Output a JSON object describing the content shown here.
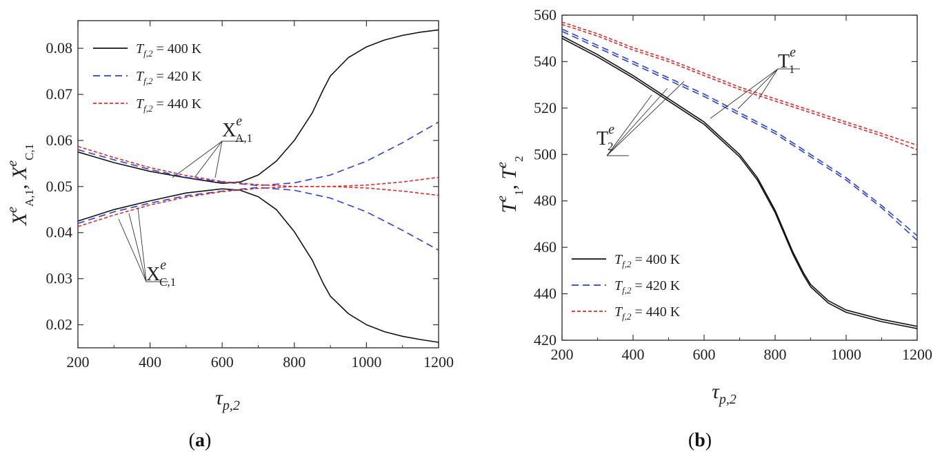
{
  "chart_data": [
    {
      "type": "line",
      "panel_label": "a",
      "xlabel": "τp,2",
      "ylabel": "XeA,1, XeC,1",
      "xlim": [
        200,
        1200
      ],
      "ylim": [
        0.015,
        0.086
      ],
      "xticks": [
        200,
        400,
        600,
        800,
        1000,
        1200
      ],
      "yticks": [
        0.02,
        0.03,
        0.04,
        0.05,
        0.06,
        0.07,
        0.08
      ],
      "ytick_labels": [
        "0.02",
        "0.03",
        "0.04",
        "0.05",
        "0.06",
        "0.07",
        "0.08"
      ],
      "legend_position": "top-left",
      "legend": [
        {
          "label": "Tf,2 = 400 K",
          "value": "400 K",
          "color": "#111111",
          "dash": "solid"
        },
        {
          "label": "Tf,2 = 420 K",
          "value": "420 K",
          "color": "#2a3fe0",
          "dash": "dashed"
        },
        {
          "label": "Tf,2 = 440 K",
          "value": "440 K",
          "color": "#e02a2a",
          "dash": "dotted"
        }
      ],
      "annotations": [
        {
          "label": "XeA,1",
          "main": "X",
          "sup": "e",
          "sub": "A,1"
        },
        {
          "label": "XeC,1",
          "main": "X",
          "sup": "e",
          "sub": "C,1"
        }
      ],
      "series": [
        {
          "name": "XA,1 Tf,2=400 K",
          "color": "#111111",
          "dash": "solid",
          "x": [
            200,
            300,
            400,
            500,
            600,
            650,
            700,
            750,
            800,
            850,
            880,
            900,
            950,
            1000,
            1050,
            1100,
            1150,
            1200
          ],
          "y": [
            0.0575,
            0.0552,
            0.0533,
            0.0519,
            0.0507,
            0.051,
            0.0525,
            0.0555,
            0.06,
            0.066,
            0.071,
            0.074,
            0.078,
            0.0803,
            0.0818,
            0.0828,
            0.0835,
            0.084
          ]
        },
        {
          "name": "XC,1 Tf,2=400 K",
          "color": "#111111",
          "dash": "solid",
          "x": [
            200,
            300,
            400,
            500,
            600,
            650,
            700,
            750,
            800,
            850,
            880,
            900,
            950,
            1000,
            1050,
            1100,
            1150,
            1200
          ],
          "y": [
            0.0425,
            0.045,
            0.0469,
            0.0486,
            0.0495,
            0.0492,
            0.0478,
            0.045,
            0.0402,
            0.034,
            0.029,
            0.0262,
            0.0224,
            0.02,
            0.0185,
            0.0175,
            0.0168,
            0.0162
          ]
        },
        {
          "name": "XA,1 Tf,2=420 K",
          "color": "#2a3fe0",
          "dash": "dashed",
          "x": [
            200,
            300,
            400,
            500,
            600,
            700,
            800,
            900,
            1000,
            1100,
            1200
          ],
          "y": [
            0.058,
            0.0558,
            0.0537,
            0.052,
            0.051,
            0.0502,
            0.0508,
            0.0525,
            0.0555,
            0.0595,
            0.064
          ]
        },
        {
          "name": "XC,1 Tf,2=420 K",
          "color": "#2a3fe0",
          "dash": "dashed",
          "x": [
            200,
            300,
            400,
            500,
            600,
            700,
            800,
            900,
            1000,
            1100,
            1200
          ],
          "y": [
            0.042,
            0.0445,
            0.0464,
            0.048,
            0.049,
            0.0498,
            0.0492,
            0.0475,
            0.0445,
            0.0405,
            0.0362
          ]
        },
        {
          "name": "XA,1 Tf,2=440 K",
          "color": "#e02a2a",
          "dash": "dotted",
          "x": [
            200,
            300,
            400,
            500,
            600,
            700,
            800,
            900,
            1000,
            1100,
            1200
          ],
          "y": [
            0.0587,
            0.0563,
            0.0541,
            0.0524,
            0.0511,
            0.0504,
            0.05,
            0.05,
            0.0503,
            0.051,
            0.052
          ]
        },
        {
          "name": "XC,1 Tf,2=440 K",
          "color": "#e02a2a",
          "dash": "dotted",
          "x": [
            200,
            300,
            400,
            500,
            600,
            700,
            800,
            900,
            1000,
            1100,
            1200
          ],
          "y": [
            0.0413,
            0.0438,
            0.046,
            0.0477,
            0.0489,
            0.0496,
            0.05,
            0.05,
            0.0497,
            0.049,
            0.0481
          ]
        }
      ]
    },
    {
      "type": "line",
      "panel_label": "b",
      "xlabel": "τp,2",
      "ylabel": "Te1, Te2",
      "xlim": [
        200,
        1200
      ],
      "ylim": [
        420,
        560
      ],
      "xticks": [
        200,
        400,
        600,
        800,
        1000,
        1200
      ],
      "yticks": [
        420,
        440,
        460,
        480,
        500,
        520,
        540,
        560
      ],
      "ytick_labels": [
        "420",
        "440",
        "460",
        "480",
        "500",
        "520",
        "540",
        "560"
      ],
      "legend_position": "bottom-left",
      "legend": [
        {
          "label": "Tf,2 = 400 K",
          "value": "400 K",
          "color": "#111111",
          "dash": "solid"
        },
        {
          "label": "Tf,2 = 420 K",
          "value": "420 K",
          "color": "#2a3fe0",
          "dash": "dashed"
        },
        {
          "label": "Tf,2 = 440 K",
          "value": "440 K",
          "color": "#e02a2a",
          "dash": "dotted"
        }
      ],
      "annotations": [
        {
          "label": "Te1",
          "main": "T",
          "sup": "e",
          "sub": "1"
        },
        {
          "label": "Te2",
          "main": "T",
          "sup": "e",
          "sub": "2"
        }
      ],
      "series": [
        {
          "name": "T1 Tf,2=400 K",
          "color": "#111111",
          "dash": "solid",
          "x": [
            200,
            300,
            400,
            500,
            600,
            700,
            750,
            800,
            850,
            880,
            900,
            950,
            1000,
            1100,
            1200
          ],
          "y": [
            551,
            543,
            534,
            524,
            514,
            500,
            490,
            476,
            458,
            449,
            444,
            437,
            433,
            429,
            426
          ]
        },
        {
          "name": "T2 Tf,2=400 K",
          "color": "#111111",
          "dash": "solid",
          "x": [
            200,
            300,
            400,
            500,
            600,
            700,
            750,
            800,
            850,
            880,
            900,
            950,
            1000,
            1100,
            1200
          ],
          "y": [
            550,
            542,
            533,
            523,
            513,
            499,
            489,
            475,
            457,
            448,
            443,
            436,
            432,
            428,
            425
          ]
        },
        {
          "name": "T1 Tf,2=420 K",
          "color": "#2a3fe0",
          "dash": "dashed",
          "x": [
            200,
            300,
            400,
            500,
            600,
            700,
            800,
            900,
            1000,
            1100,
            1200
          ],
          "y": [
            554,
            547,
            540,
            533,
            526,
            518,
            510,
            500,
            490,
            478,
            465
          ]
        },
        {
          "name": "T2 Tf,2=420 K",
          "color": "#2a3fe0",
          "dash": "dashed",
          "x": [
            200,
            300,
            400,
            500,
            600,
            700,
            800,
            900,
            1000,
            1100,
            1200
          ],
          "y": [
            553,
            546,
            539,
            532,
            525,
            517,
            509,
            499,
            489,
            477,
            463
          ]
        },
        {
          "name": "T1 Tf,2=440 K",
          "color": "#e02a2a",
          "dash": "dotted",
          "x": [
            200,
            300,
            400,
            500,
            600,
            700,
            800,
            900,
            1000,
            1100,
            1200
          ],
          "y": [
            557,
            552,
            546,
            541,
            535,
            529,
            524,
            519,
            514,
            509,
            504
          ]
        },
        {
          "name": "T2 Tf,2=440 K",
          "color": "#e02a2a",
          "dash": "dotted",
          "x": [
            200,
            300,
            400,
            500,
            600,
            700,
            800,
            900,
            1000,
            1100,
            1200
          ],
          "y": [
            556,
            551,
            545,
            540,
            534,
            528,
            523,
            518,
            513,
            508,
            502
          ]
        }
      ]
    }
  ]
}
